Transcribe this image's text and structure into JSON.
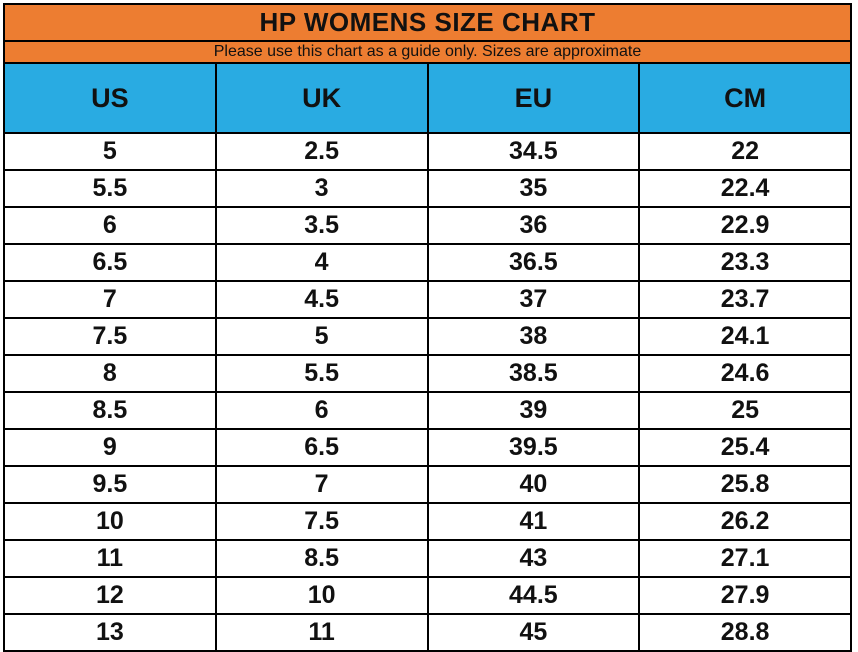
{
  "title": "HP WOMENS SIZE CHART",
  "subtitle": "Please use this chart as a guide only. Sizes are approximate",
  "colors": {
    "orange": "#ED7D31",
    "blue": "#29ABE2",
    "border": "#000000",
    "text": "#111111"
  },
  "chart_data": {
    "type": "table",
    "title": "HP WOMENS SIZE CHART",
    "subtitle": "Please use this chart as a guide only. Sizes are approximate",
    "columns": [
      "US",
      "UK",
      "EU",
      "CM"
    ],
    "rows": [
      [
        "5",
        "2.5",
        "34.5",
        "22"
      ],
      [
        "5.5",
        "3",
        "35",
        "22.4"
      ],
      [
        "6",
        "3.5",
        "36",
        "22.9"
      ],
      [
        "6.5",
        "4",
        "36.5",
        "23.3"
      ],
      [
        "7",
        "4.5",
        "37",
        "23.7"
      ],
      [
        "7.5",
        "5",
        "38",
        "24.1"
      ],
      [
        "8",
        "5.5",
        "38.5",
        "24.6"
      ],
      [
        "8.5",
        "6",
        "39",
        "25"
      ],
      [
        "9",
        "6.5",
        "39.5",
        "25.4"
      ],
      [
        "9.5",
        "7",
        "40",
        "25.8"
      ],
      [
        "10",
        "7.5",
        "41",
        "26.2"
      ],
      [
        "11",
        "8.5",
        "43",
        "27.1"
      ],
      [
        "12",
        "10",
        "44.5",
        "27.9"
      ],
      [
        "13",
        "11",
        "45",
        "28.8"
      ]
    ]
  }
}
